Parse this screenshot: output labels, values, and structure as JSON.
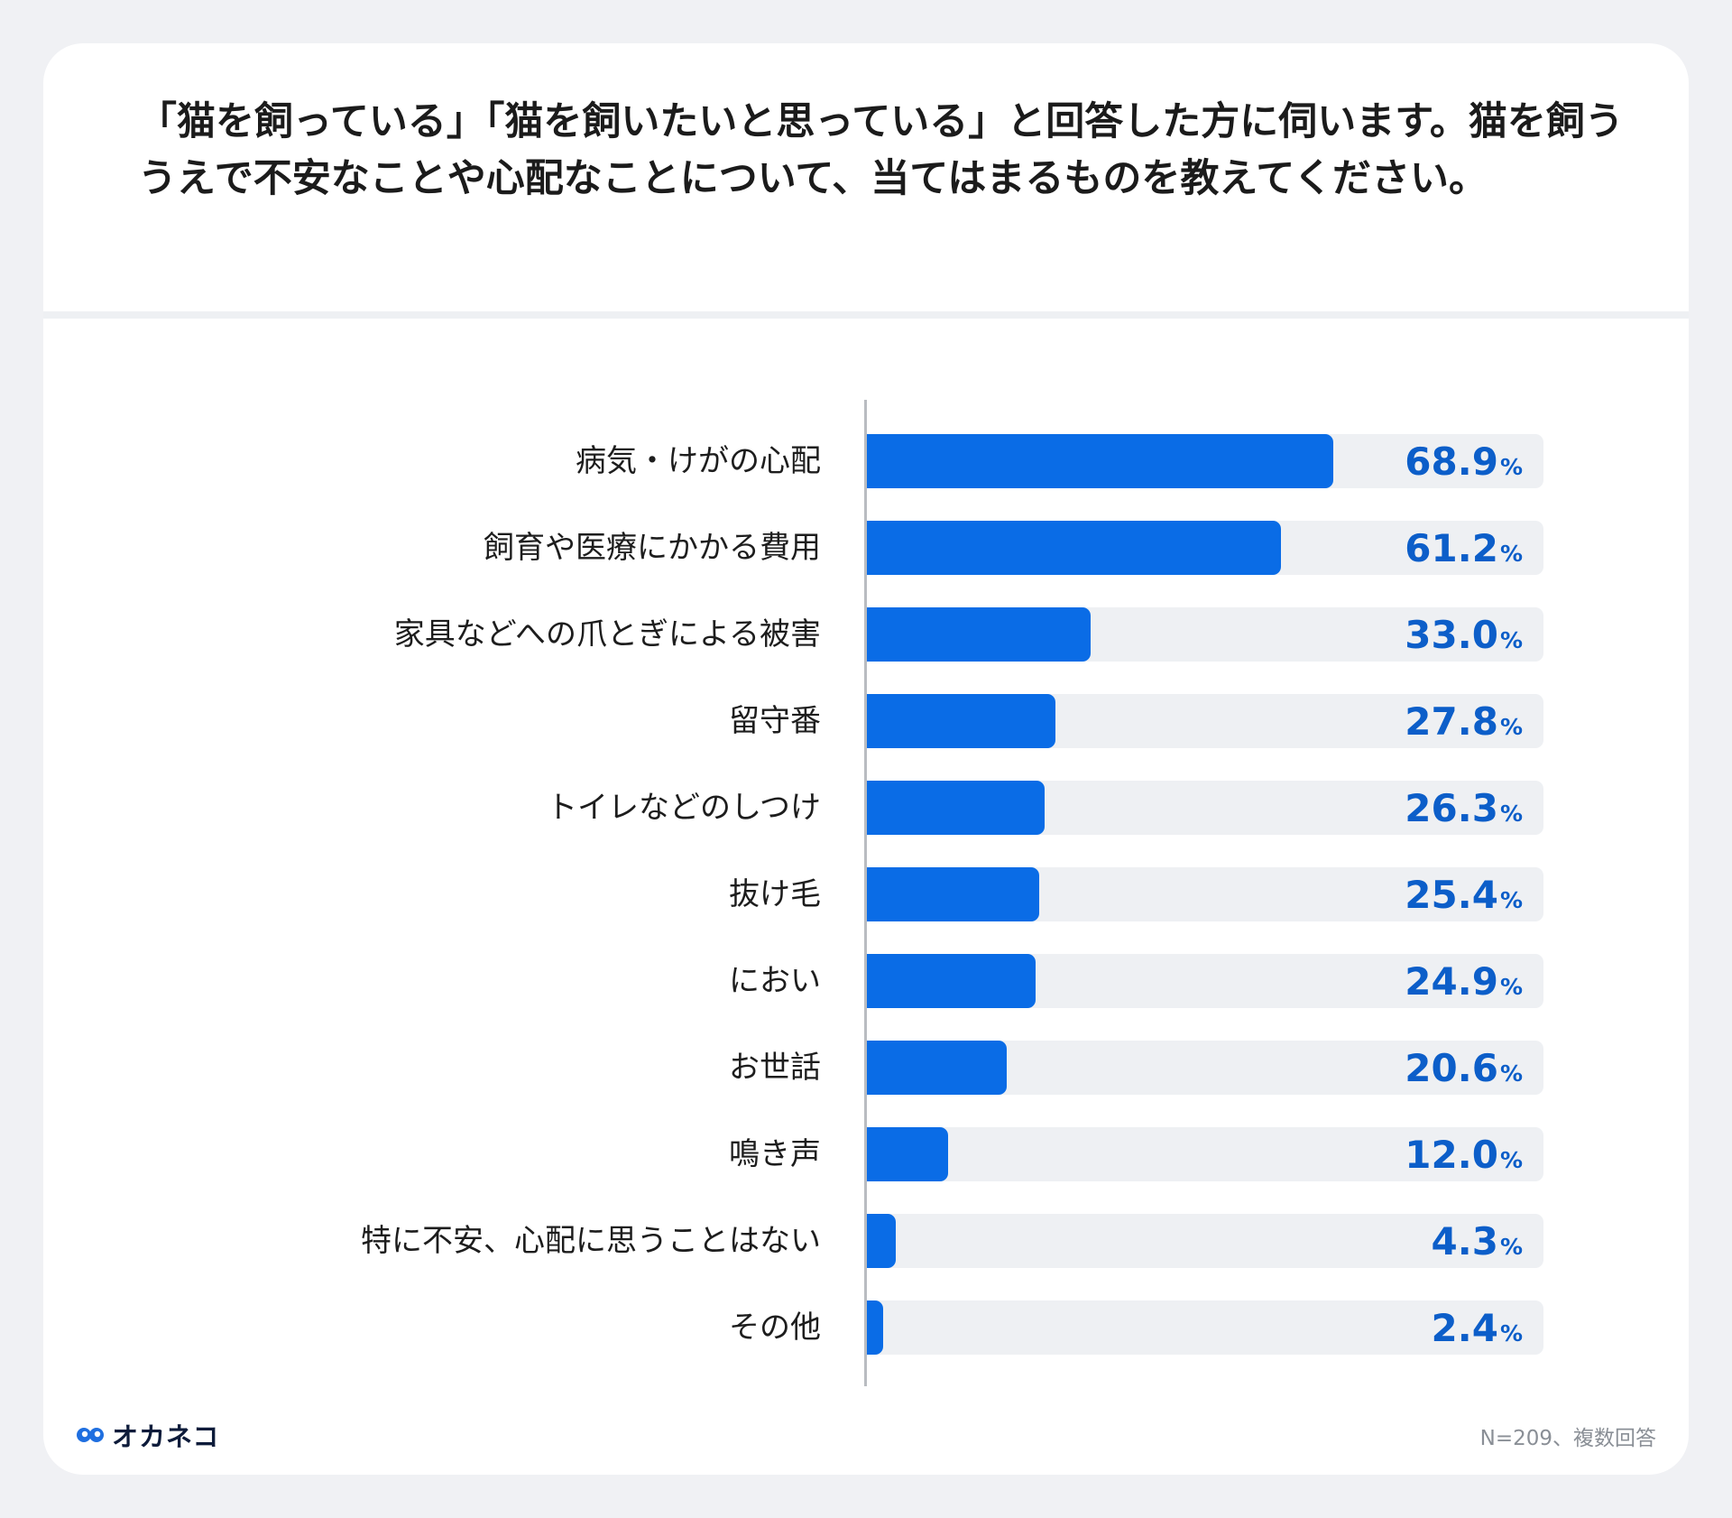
{
  "question": "「猫を飼っている」「猫を飼いたいと思っている」と回答した方に伺います。猫を飼ううえで不安なことや心配なことについて、当てはまるものを教えてください。",
  "chart_data": {
    "type": "bar",
    "orientation": "horizontal",
    "unit": "%",
    "xlim": [
      0,
      100
    ],
    "categories": [
      "病気・けがの心配",
      "飼育や医療にかかる費用",
      "家具などへの爪とぎによる被害",
      "留守番",
      "トイレなどのしつけ",
      "抜け毛",
      "におい",
      "お世話",
      "鳴き声",
      "特に不安、心配に思うことはない",
      "その他"
    ],
    "values": [
      68.9,
      61.2,
      33.0,
      27.8,
      26.3,
      25.4,
      24.9,
      20.6,
      12.0,
      4.3,
      2.4
    ],
    "value_labels": [
      "68.9",
      "61.2",
      "33.0",
      "27.8",
      "26.3",
      "25.4",
      "24.9",
      "20.6",
      "12.0",
      "4.3",
      "2.4"
    ],
    "bar_color": "#0a6ce6",
    "label_color": "#0c5ec9"
  },
  "brand": {
    "name": "オカネコ",
    "icon": "owl-eyes-icon"
  },
  "footnote": "N=209、複数回答"
}
